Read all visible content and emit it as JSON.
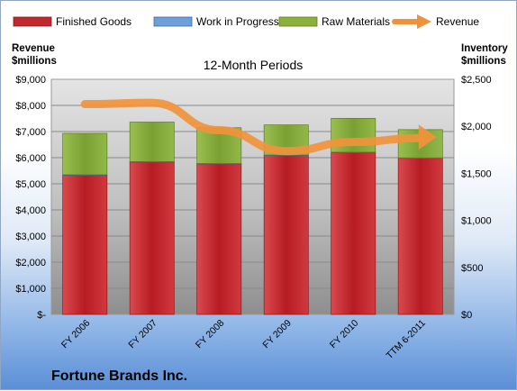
{
  "chart_data": {
    "type": "bar",
    "title": "12-Month Periods",
    "company": "Fortune Brands Inc.",
    "categories": [
      "FY 2006",
      "FY 2007",
      "FY 2008",
      "FY 2009",
      "FY 2010",
      "TTM 6-2011"
    ],
    "y_left": {
      "label_line1": "Revenue",
      "label_line2": "$millions",
      "ylim": [
        0,
        9000
      ],
      "ticks": [
        "$-",
        "$1,000",
        "$2,000",
        "$3,000",
        "$4,000",
        "$5,000",
        "$6,000",
        "$7,000",
        "$8,000",
        "$9,000"
      ]
    },
    "y_right": {
      "label_line1": "Inventory",
      "label_line2": "$millions",
      "ylim": [
        0,
        2500
      ],
      "ticks": [
        "$0",
        "$500",
        "$1,000",
        "$1,500",
        "$2,000",
        "$2,500"
      ]
    },
    "series": [
      {
        "name": "Finished Goods",
        "axis": "right",
        "type": "stacked-bar",
        "color": "#c0282e",
        "values": [
          1480,
          1620,
          1600,
          1690,
          1720,
          1660
        ]
      },
      {
        "name": "Work in Progress",
        "axis": "right",
        "type": "stacked-bar",
        "color": "#6f9fd8",
        "values": [
          5,
          5,
          5,
          5,
          5,
          5
        ]
      },
      {
        "name": "Raw Materials",
        "axis": "right",
        "type": "stacked-bar",
        "color": "#8ab13a",
        "values": [
          440,
          420,
          380,
          320,
          360,
          300
        ]
      },
      {
        "name": "Revenue",
        "axis": "left",
        "type": "line",
        "color": "#f0923c",
        "values": [
          8050,
          8100,
          7050,
          6250,
          6600,
          6750
        ]
      }
    ],
    "legend_position": "top",
    "grid": true
  }
}
